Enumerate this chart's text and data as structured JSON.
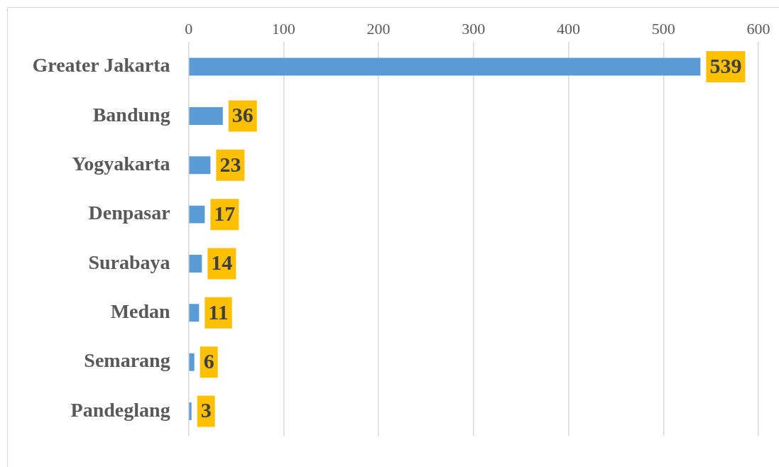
{
  "chart_data": {
    "type": "bar",
    "orientation": "horizontal",
    "categories": [
      "Greater Jakarta",
      "Bandung",
      "Yogyakarta",
      "Denpasar",
      "Surabaya",
      "Medan",
      "Semarang",
      "Pandeglang"
    ],
    "values": [
      539,
      36,
      23,
      17,
      14,
      11,
      6,
      3
    ],
    "color": "#5b9bd5",
    "xlim": [
      0,
      600
    ],
    "xticks": [
      0,
      100,
      200,
      300,
      400,
      500,
      600
    ],
    "grid": "x",
    "legend": false,
    "data_labels": true
  }
}
